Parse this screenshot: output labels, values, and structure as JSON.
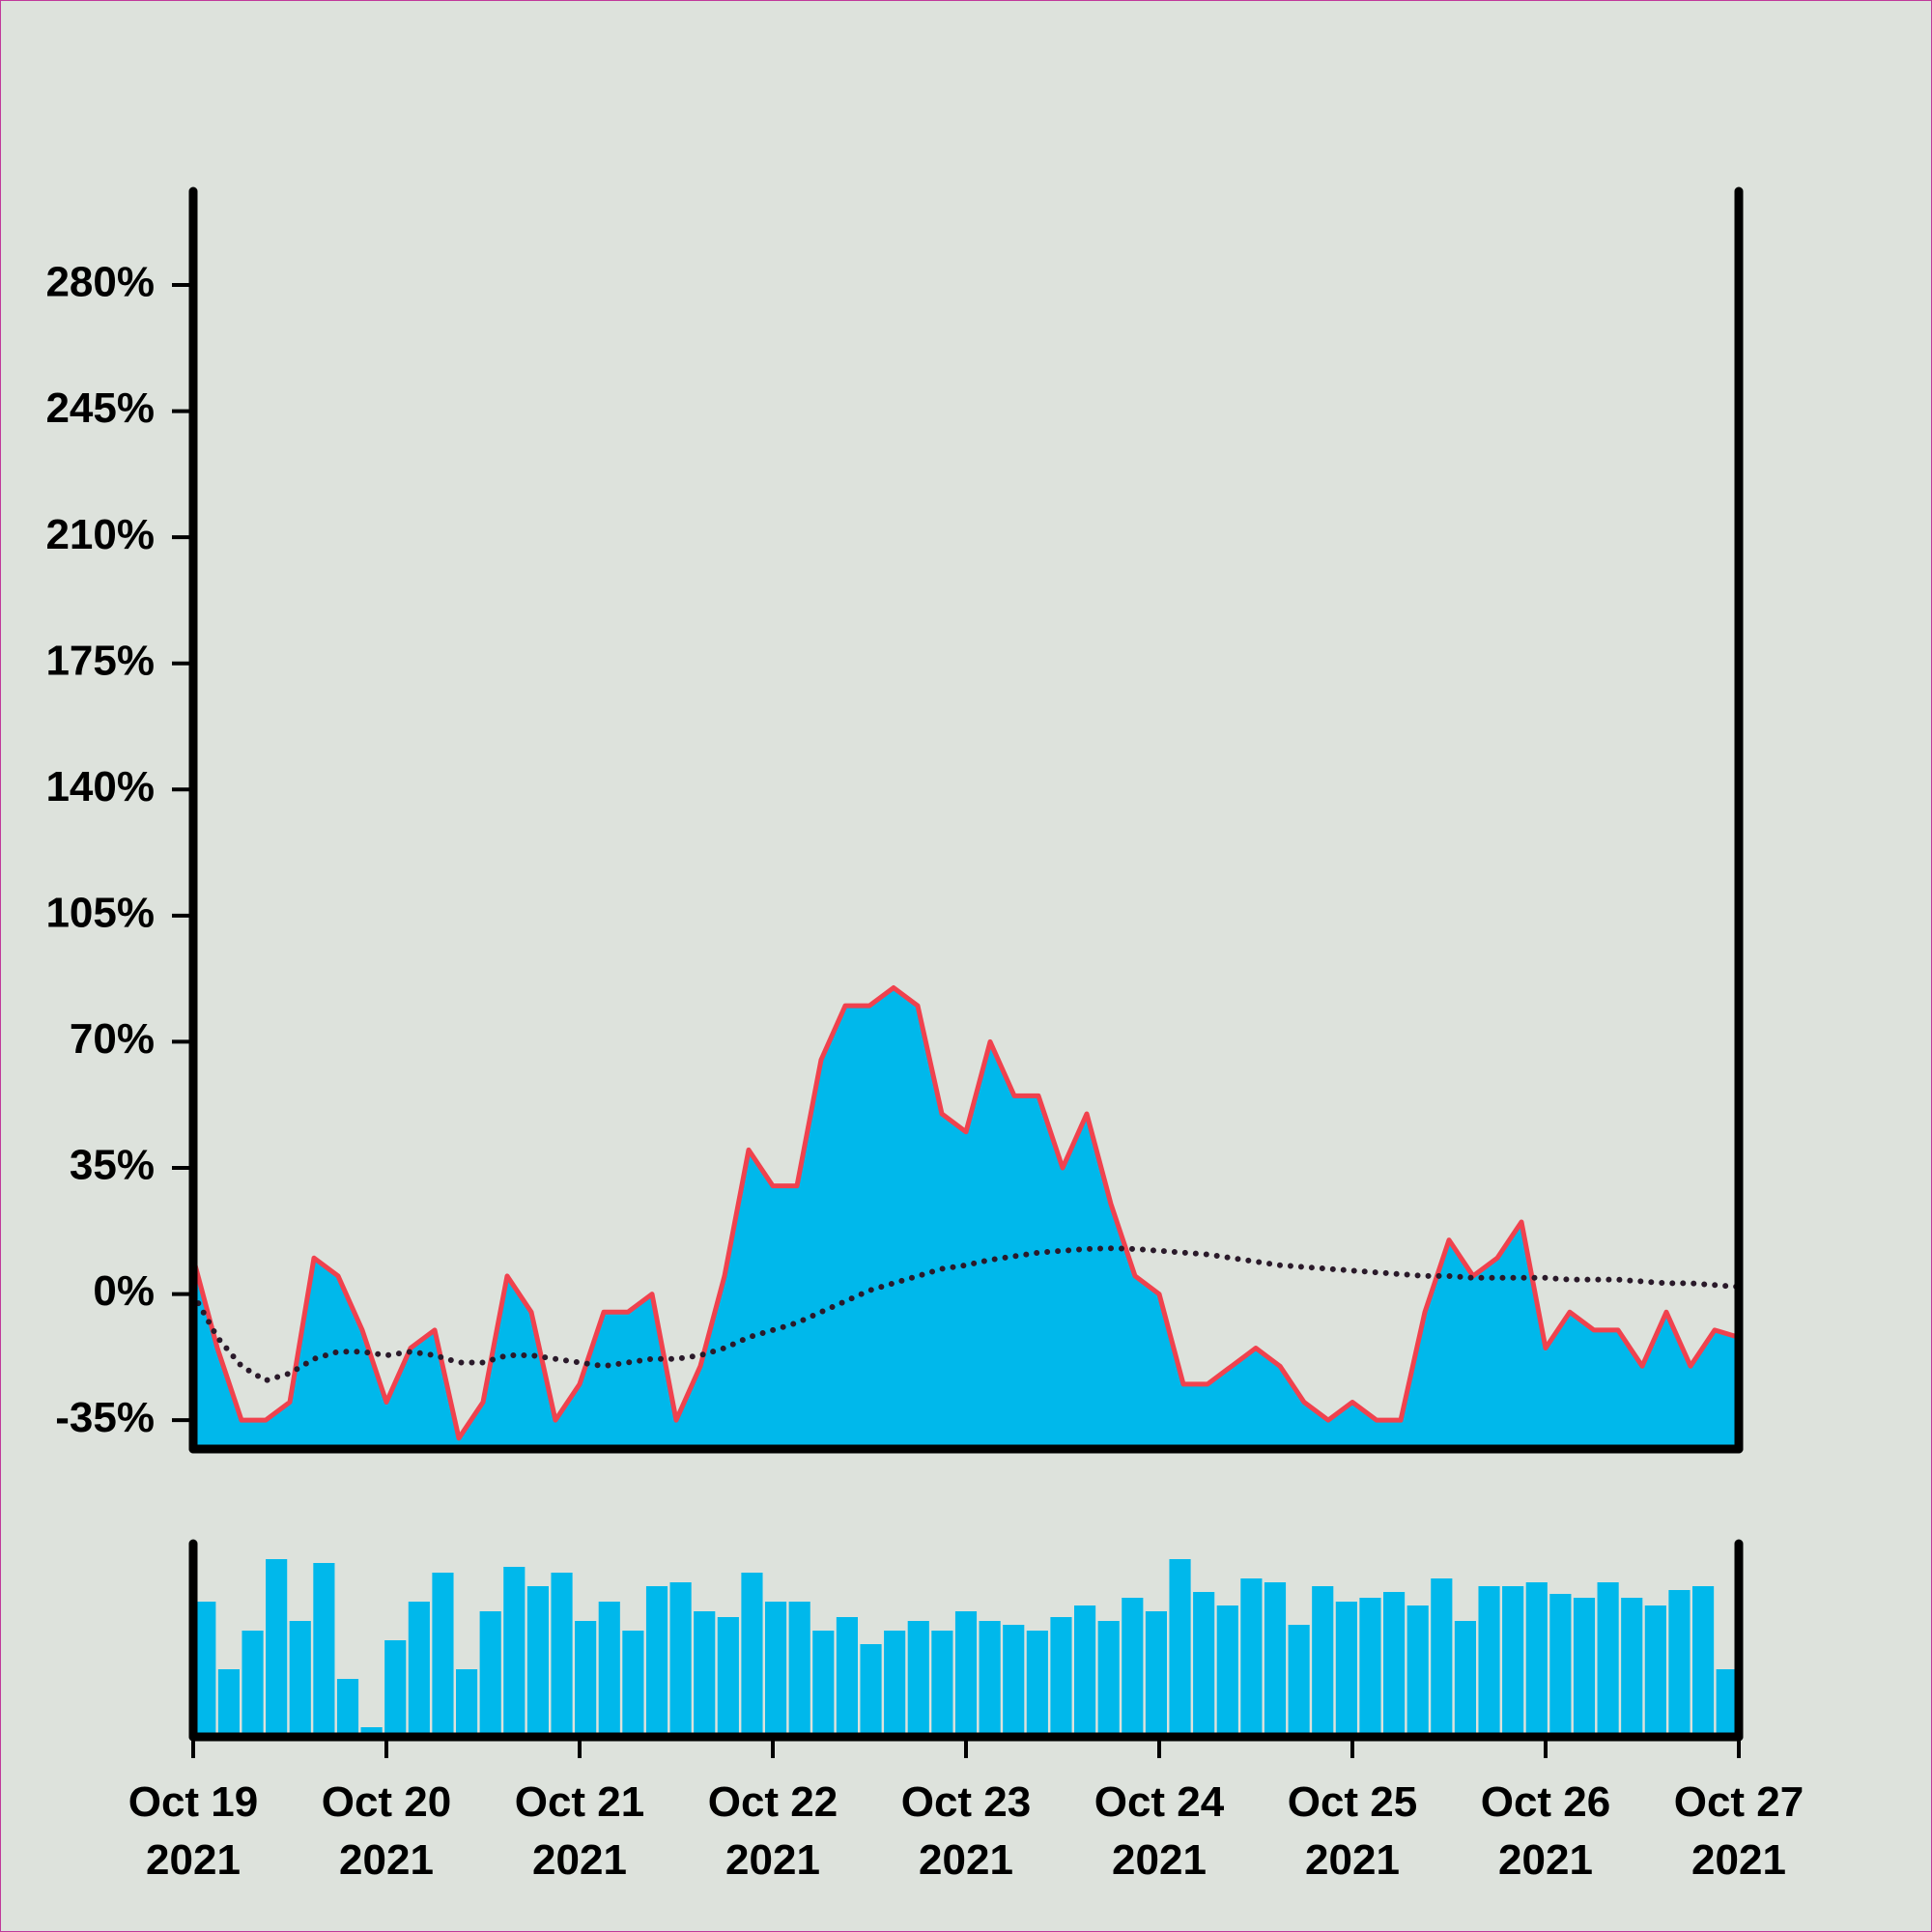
{
  "chart_data": {
    "type": "area",
    "categories": [
      "Oct 19 2021",
      null,
      null,
      null,
      null,
      null,
      null,
      null,
      "Oct 20 2021",
      null,
      null,
      null,
      null,
      null,
      null,
      null,
      "Oct 21 2021",
      null,
      null,
      null,
      null,
      null,
      null,
      null,
      "Oct 22 2021",
      null,
      null,
      null,
      null,
      null,
      null,
      null,
      "Oct 23 2021",
      null,
      null,
      null,
      null,
      null,
      null,
      null,
      "Oct 24 2021",
      null,
      null,
      null,
      null,
      null,
      null,
      null,
      "Oct 25 2021",
      null,
      null,
      null,
      null,
      null,
      null,
      null,
      "Oct 26 2021",
      null,
      null,
      null,
      null,
      null,
      null,
      null,
      "Oct 27 2021"
    ],
    "series": [
      {
        "type": "area",
        "color": "#00b8eb",
        "line_color": "#f0424e",
        "values": [
          10,
          -15,
          -35,
          -35,
          -30,
          10,
          5,
          -10,
          -30,
          -15,
          -10,
          -40,
          -30,
          5,
          -5,
          -35,
          -25,
          -5,
          -5,
          0,
          -35,
          -20,
          5,
          40,
          30,
          30,
          65,
          80,
          80,
          85,
          80,
          50,
          45,
          70,
          55,
          55,
          35,
          50,
          25,
          5,
          0,
          -25,
          -25,
          -20,
          -15,
          -20,
          -30,
          -35,
          -30,
          -35,
          -35,
          -5,
          15,
          5,
          10,
          20,
          -15,
          -5,
          -10,
          -10,
          -20,
          -5,
          -20,
          -10,
          -12
        ]
      },
      {
        "type": "line",
        "style": "dotted",
        "color": "#2a1a2a",
        "values": [
          0,
          -12,
          -20,
          -24,
          -22,
          -18,
          -16,
          -16,
          -17,
          -16,
          -17,
          -19,
          -19,
          -17,
          -17,
          -18,
          -19,
          -20,
          -19,
          -18,
          -18,
          -17,
          -15,
          -12,
          -10,
          -8,
          -5,
          -2,
          1,
          3,
          5,
          7,
          8,
          9.5,
          10.5,
          11.5,
          12,
          12.5,
          12.7,
          12.5,
          12,
          11.5,
          11,
          10,
          9,
          8,
          7.5,
          7,
          6.5,
          6,
          5.5,
          5,
          5,
          4.5,
          4.5,
          4.5,
          4.5,
          4,
          4,
          4,
          3.5,
          3,
          3,
          2.5,
          2
        ]
      },
      {
        "type": "bar",
        "axis": "y2",
        "color": "#00b8eb",
        "values": [
          70,
          35,
          55,
          92,
          60,
          90,
          30,
          5,
          50,
          70,
          85,
          35,
          65,
          88,
          78,
          85,
          60,
          70,
          55,
          78,
          80,
          65,
          62,
          85,
          70,
          70,
          55,
          62,
          48,
          55,
          60,
          55,
          65,
          60,
          58,
          55,
          62,
          68,
          60,
          72,
          65,
          92,
          75,
          68,
          82,
          80,
          58,
          78,
          70,
          72,
          75,
          68,
          82,
          60,
          78,
          78,
          80,
          74,
          72,
          80,
          72,
          68,
          76,
          78,
          35
        ]
      }
    ],
    "ylim": [
      -43,
      306
    ],
    "yticks": [
      {
        "value": -35,
        "label": "-35%"
      },
      {
        "value": 0,
        "label": "0%"
      },
      {
        "value": 35,
        "label": "35%"
      },
      {
        "value": 70,
        "label": "70%"
      },
      {
        "value": 105,
        "label": "105%"
      },
      {
        "value": 140,
        "label": "140%"
      },
      {
        "value": 175,
        "label": "175%"
      },
      {
        "value": 210,
        "label": "210%"
      },
      {
        "value": 245,
        "label": "245%"
      },
      {
        "value": 280,
        "label": "280%"
      }
    ],
    "y2lim": [
      0,
      100
    ],
    "grid": false
  }
}
